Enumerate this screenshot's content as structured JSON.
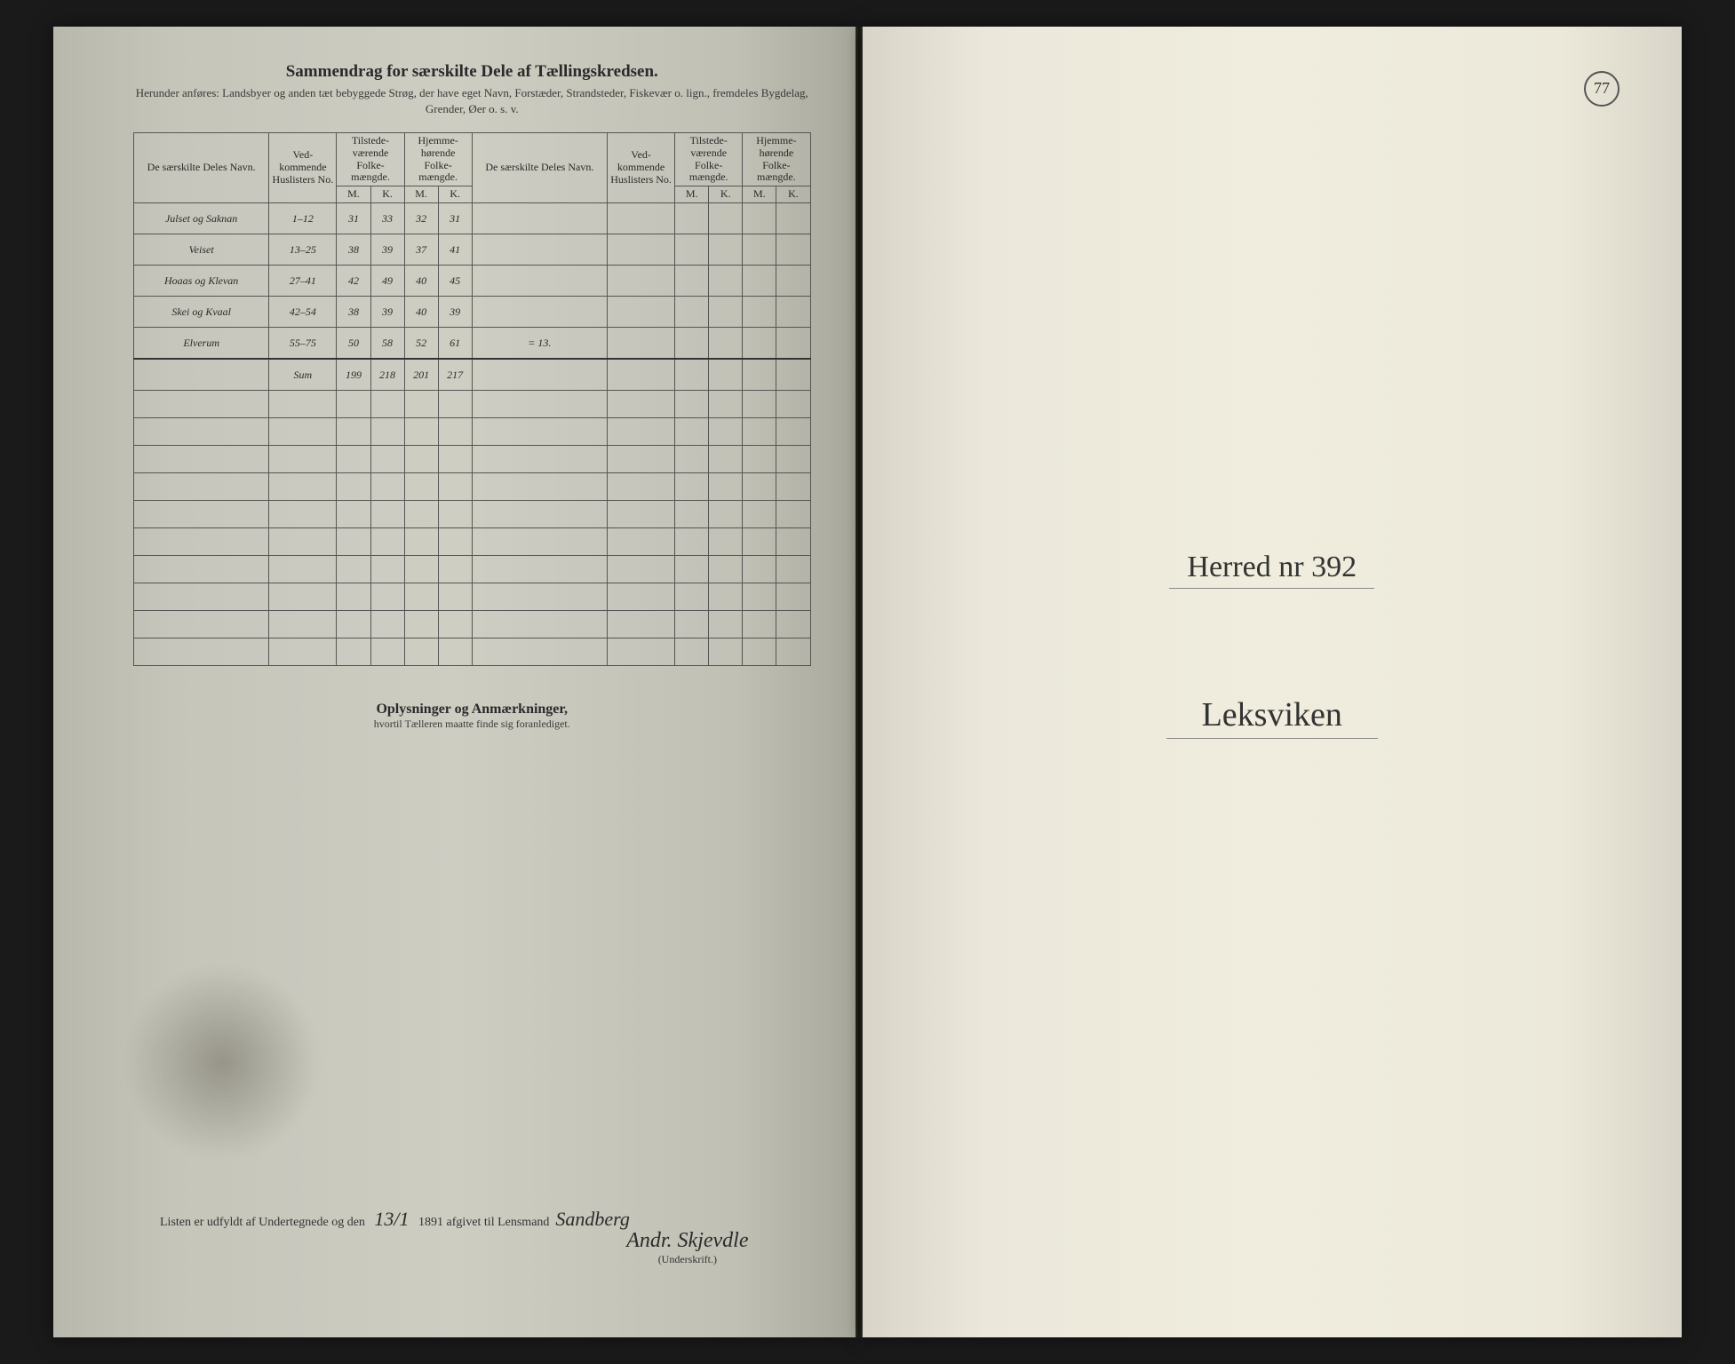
{
  "left": {
    "title": "Sammendrag for særskilte Dele af Tællingskredsen.",
    "subtitle": "Herunder anføres: Landsbyer og anden tæt bebyggede Strøg, der have eget Navn, Forstæder, Strandsteder, Fiskevær o. lign., fremdeles Bygdelag, Grender, Øer o. s. v.",
    "headers": {
      "name": "De særskilte Deles Navn.",
      "huslister": "Ved-kommende Huslisters No.",
      "tilstede": "Tilstede-værende Folke-mængde.",
      "hjemme": "Hjemme-hørende Folke-mængde.",
      "m": "M.",
      "k": "K."
    },
    "rows": [
      {
        "name": "Julset og Saknan",
        "no": "1–12",
        "tm": "31",
        "tk": "33",
        "hm": "32",
        "hk": "31",
        "note": ""
      },
      {
        "name": "Veiset",
        "no": "13–25",
        "tm": "38",
        "tk": "39",
        "hm": "37",
        "hk": "41",
        "note": ""
      },
      {
        "name": "Hoaas og Klevan",
        "no": "27–41",
        "tm": "42",
        "tk": "49",
        "hm": "40",
        "hk": "45",
        "note": ""
      },
      {
        "name": "Skei og Kvaal",
        "no": "42–54",
        "tm": "38",
        "tk": "39",
        "hm": "40",
        "hk": "39",
        "note": ""
      },
      {
        "name": "Elverum",
        "no": "55–75",
        "tm": "50",
        "tk": "58",
        "hm": "52",
        "hk": "61",
        "note": "= 13."
      }
    ],
    "sum": {
      "label": "Sum",
      "tm": "199",
      "tk": "218",
      "hm": "201",
      "hk": "217"
    },
    "remarks_title": "Oplysninger og Anmærkninger,",
    "remarks_sub": "hvortil Tælleren maatte finde sig foranlediget.",
    "footer_prefix": "Listen er udfyldt af Undertegnede og den",
    "footer_date": "13/1",
    "footer_mid": "1891 afgivet til Lensmand",
    "footer_name": "Sandberg",
    "signature": "Andr. Skjevdle",
    "signature_label": "(Underskrift.)"
  },
  "right": {
    "page_no": "77",
    "line1": "Herred nr 392",
    "line2": "Leksviken"
  },
  "colors": {
    "paper_left": "#cdcdc2",
    "paper_right": "#f0edde",
    "ink": "#2a2a2a",
    "border": "#555"
  }
}
